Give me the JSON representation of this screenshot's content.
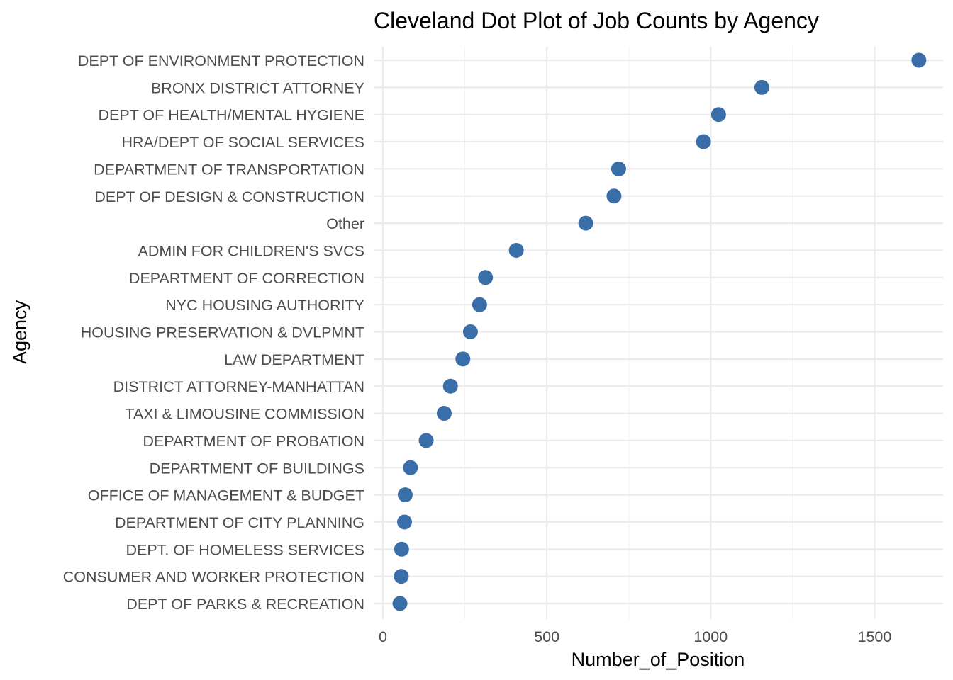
{
  "chart_data": {
    "type": "scatter",
    "title": "Cleveland Dot Plot of Job Counts by Agency",
    "xlabel": "Number_of_Position",
    "ylabel": "Agency",
    "xlim": [
      0,
      1700
    ],
    "x_ticks": [
      0,
      500,
      1000,
      1500
    ],
    "grid": true,
    "legend": "none",
    "point_color": "#3a6ea8",
    "categories": [
      "DEPT OF ENVIRONMENT PROTECTION",
      "BRONX DISTRICT ATTORNEY",
      "DEPT OF HEALTH/MENTAL HYGIENE",
      "HRA/DEPT OF SOCIAL SERVICES",
      "DEPARTMENT OF TRANSPORTATION",
      "DEPT OF DESIGN & CONSTRUCTION",
      "Other",
      "ADMIN FOR CHILDREN'S SVCS",
      "DEPARTMENT OF CORRECTION",
      "NYC HOUSING AUTHORITY",
      "HOUSING PRESERVATION & DVLPMNT",
      "LAW DEPARTMENT",
      "DISTRICT ATTORNEY-MANHATTAN",
      "TAXI & LIMOUSINE COMMISSION",
      "DEPARTMENT OF PROBATION",
      "DEPARTMENT OF BUILDINGS",
      "OFFICE OF MANAGEMENT & BUDGET",
      "DEPARTMENT OF CITY PLANNING",
      "DEPT. OF HOMELESS SERVICES",
      "CONSUMER AND WORKER PROTECTION",
      "DEPT OF PARKS & RECREATION"
    ],
    "values": [
      1635,
      1156,
      1024,
      978,
      719,
      705,
      619,
      407,
      313,
      295,
      267,
      244,
      206,
      187,
      132,
      84,
      68,
      66,
      57,
      56,
      52
    ]
  }
}
